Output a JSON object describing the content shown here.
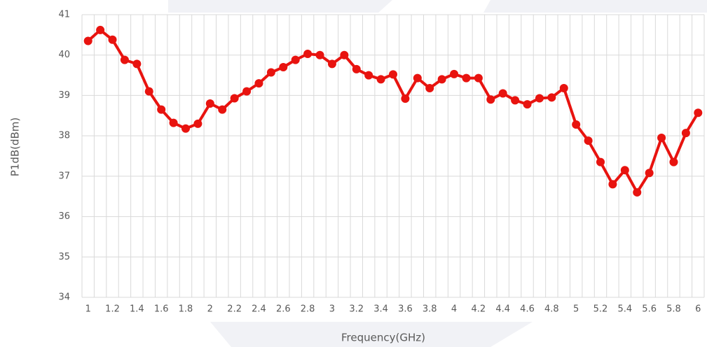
{
  "chart_data": {
    "type": "line",
    "y_label": "P1dB(dBm)",
    "x_label": "Frequency(GHz)",
    "categories": [
      "1",
      null,
      "1.2",
      null,
      "1.4",
      null,
      "1.6",
      null,
      "1.8",
      null,
      "2",
      null,
      "2.2",
      null,
      "2.4",
      null,
      "2.6",
      null,
      "2.8",
      null,
      "3",
      null,
      "3.2",
      null,
      "3.4",
      null,
      "3.6",
      null,
      "3.8",
      null,
      "4",
      null,
      "4.2",
      null,
      "4.4",
      null,
      "4.6",
      null,
      "4.8",
      null,
      "5",
      null,
      "5.2",
      null,
      "5.4",
      null,
      "5.6",
      null,
      "5.8",
      null,
      "6"
    ],
    "series": [
      {
        "name": "P1dB",
        "color": "#e8130f",
        "values": [
          40.35,
          40.62,
          40.38,
          39.88,
          39.78,
          39.1,
          38.65,
          38.32,
          38.18,
          38.3,
          38.8,
          38.65,
          38.93,
          39.1,
          39.3,
          39.57,
          39.7,
          39.88,
          40.03,
          40.0,
          39.78,
          40.0,
          39.65,
          39.5,
          39.4,
          39.52,
          38.92,
          39.43,
          39.18,
          39.4,
          39.53,
          39.43,
          39.43,
          38.9,
          39.05,
          38.88,
          38.78,
          38.93,
          38.95,
          39.18,
          38.28,
          37.88,
          37.35,
          36.8,
          37.15,
          36.6,
          37.08,
          37.95,
          37.35,
          38.07,
          38.57
        ]
      }
    ],
    "ylim": [
      34,
      41
    ],
    "yticks": [
      34,
      35,
      36,
      37,
      38,
      39,
      40,
      41
    ],
    "grid": true
  }
}
